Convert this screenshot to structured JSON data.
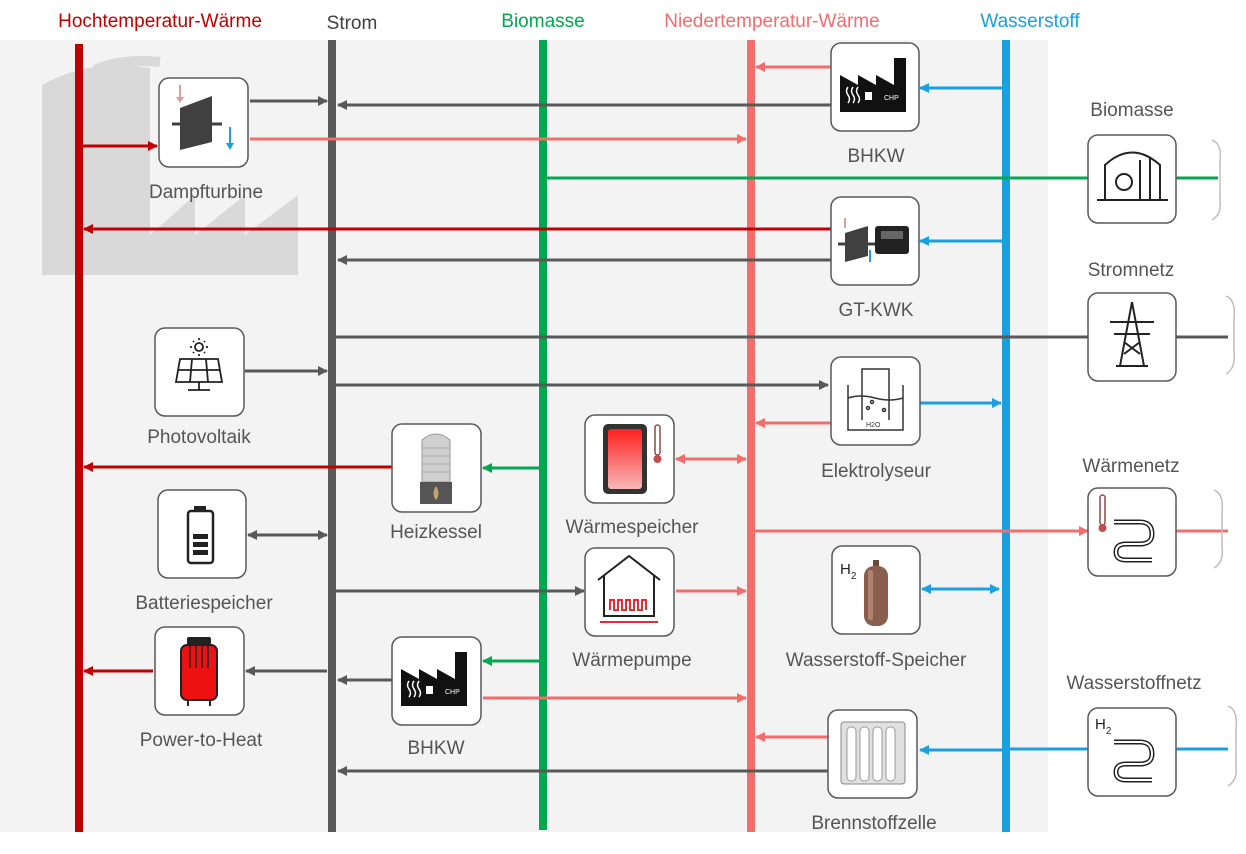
{
  "colors": {
    "hochtemperatur": "#c00000",
    "strom": "#595959",
    "biomasse": "#00a850",
    "niedertemperatur": "#f46d6d",
    "wasserstoff": "#1aa0e0",
    "background_panel": "#f3f3f3"
  },
  "buses": {
    "hochtemperatur": "Hochtemperatur-Wärme",
    "strom": "Strom",
    "biomasse": "Biomasse",
    "niedertemperatur": "Niedertemperatur-Wärme",
    "wasserstoff": "Wasserstoff"
  },
  "components": {
    "dampfturbine": "Dampfturbine",
    "bhkw_top": "BHKW",
    "gt_kwk": "GT-KWK",
    "photovoltaik": "Photovoltaik",
    "elektrolyseur": "Elektrolyseur",
    "heizkessel": "Heizkessel",
    "waermespeicher": "Wärmespeicher",
    "batteriespeicher": "Batteriespeicher",
    "waermepumpe": "Wärmepumpe",
    "wasserstoff_speicher": "Wasserstoff-Speicher",
    "power_to_heat": "Power-to-Heat",
    "bhkw_bottom": "BHKW",
    "brennstoffzelle": "Brennstoffzelle"
  },
  "grids": {
    "biomasse": "Biomasse",
    "stromnetz": "Stromnetz",
    "waermenetz": "Wärmenetz",
    "wasserstoffnetz": "Wasserstoffnetz"
  },
  "icon_text": {
    "chp": "CHP",
    "h2": "H",
    "h2_sub": "2",
    "h2o": "H2O"
  }
}
